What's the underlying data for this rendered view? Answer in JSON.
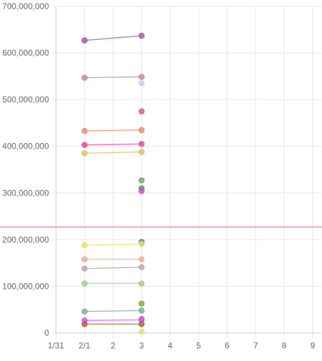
{
  "chart_data": {
    "type": "line",
    "title": "",
    "xlabel": "",
    "ylabel": "",
    "x_ticks": [
      "1/31",
      "2/1",
      "2",
      "3",
      "4",
      "5",
      "6",
      "7",
      "8",
      "9"
    ],
    "y_ticks": [
      "0",
      "100,000,000",
      "200,000,000",
      "300,000,000",
      "400,000,000",
      "500,000,000",
      "600,000,000",
      "700,000,000"
    ],
    "xlim": [
      0,
      9.3
    ],
    "ylim": [
      0,
      700000000
    ],
    "grid": true,
    "legend": "none",
    "reference_line": {
      "y": 227000000,
      "color": "#f4a6c2"
    },
    "series": [
      {
        "color": "#a35aa3",
        "values": [
          [
            1,
            627000000
          ],
          [
            3,
            637000000
          ]
        ]
      },
      {
        "color": "#c98a8a",
        "values": [
          [
            1,
            547000000
          ],
          [
            3,
            549000000
          ]
        ]
      },
      {
        "color": "#d8c4ec",
        "values": [
          [
            3,
            535000000
          ]
        ]
      },
      {
        "color": "#e0557a",
        "values": [
          [
            3,
            475000000
          ]
        ]
      },
      {
        "color": "#f08a64",
        "values": [
          [
            1,
            433000000
          ],
          [
            3,
            435000000
          ]
        ]
      },
      {
        "color": "#ea4a90",
        "values": [
          [
            1,
            403000000
          ],
          [
            3,
            405000000
          ]
        ]
      },
      {
        "color": "#d6c266",
        "values": [
          [
            1,
            385000000
          ],
          [
            3,
            388000000
          ]
        ]
      },
      {
        "color": "#6aaa6a",
        "values": [
          [
            3,
            327000000
          ]
        ]
      },
      {
        "color": "#5a8f5a",
        "values": [
          [
            3,
            310000000
          ]
        ]
      },
      {
        "color": "#d14ae0",
        "values": [
          [
            3,
            304000000
          ]
        ]
      },
      {
        "color": "#4a7ab0",
        "values": [
          [
            3,
            195000000
          ]
        ]
      },
      {
        "color": "#3aa08a",
        "values": [
          [
            3,
            192000000
          ]
        ]
      },
      {
        "color": "#f0e060",
        "values": [
          [
            1,
            188000000
          ],
          [
            3,
            191000000
          ]
        ]
      },
      {
        "color": "#eab090",
        "values": [
          [
            1,
            158000000
          ],
          [
            3,
            158000000
          ]
        ]
      },
      {
        "color": "#b8a8a0",
        "values": [
          [
            1,
            138000000
          ],
          [
            3,
            141000000
          ]
        ]
      },
      {
        "color": "#9ccf7a",
        "values": [
          [
            1,
            106000000
          ],
          [
            3,
            106000000
          ]
        ]
      },
      {
        "color": "#88aa30",
        "values": [
          [
            3,
            63000000
          ]
        ]
      },
      {
        "color": "#78b09a",
        "values": [
          [
            1,
            46000000
          ],
          [
            3,
            48000000
          ]
        ]
      },
      {
        "color": "#d070c0",
        "values": [
          [
            3,
            30000000
          ]
        ]
      },
      {
        "color": "#e050f0",
        "values": [
          [
            1,
            27000000
          ],
          [
            3,
            28000000
          ]
        ]
      },
      {
        "color": "#9a6a3a",
        "values": [
          [
            1,
            19000000
          ],
          [
            3,
            19000000
          ]
        ]
      },
      {
        "color": "#d6ea60",
        "values": [
          [
            3,
            3000000
          ]
        ]
      }
    ]
  }
}
